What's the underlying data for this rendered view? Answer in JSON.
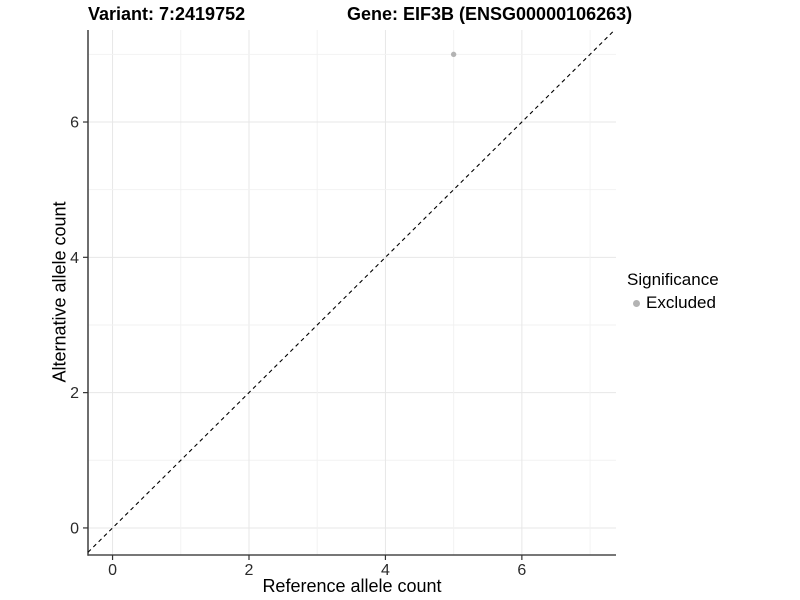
{
  "header": {
    "variant_label": "Variant: 7:2419752",
    "gene_label": "Gene: EIF3B (ENSG00000106263)"
  },
  "legend": {
    "title": "Significance",
    "items": [
      {
        "label": "Excluded",
        "color": "#b3b3b3"
      }
    ]
  },
  "chart_data": {
    "type": "scatter",
    "title": "Variant: 7:2419752 | Gene: EIF3B (ENSG00000106263)",
    "xlabel": "Reference allele count",
    "ylabel": "Alternative allele count",
    "xlim": [
      -0.36,
      7.38
    ],
    "ylim": [
      -0.4,
      7.36
    ],
    "x_ticks": [
      0,
      2,
      4,
      6
    ],
    "y_ticks": [
      0,
      2,
      4,
      6
    ],
    "grid_positions": [
      0,
      1,
      2,
      3,
      4,
      5,
      6,
      7
    ],
    "grid": true,
    "legend_position": "right",
    "legend_title": "Significance",
    "legend_entries": [
      "Excluded"
    ],
    "series": [
      {
        "name": "Excluded",
        "color": "#b3b3b3",
        "points": [
          {
            "x": 5,
            "y": 7
          }
        ]
      }
    ],
    "reference_line": {
      "label": "identity-line-y-equals-x",
      "x1": -0.36,
      "y1": -0.36,
      "x2": 7.36,
      "y2": 7.36,
      "style": "dashed",
      "color": "#000000"
    },
    "style": {
      "background": "#ffffff",
      "major_grid": "#e7e7e7",
      "minor_grid": "#f2f2f2",
      "axis_line": "#4a4a4a",
      "tick_color": "#333333",
      "tick_label_color": "#2b2b2b",
      "point_radius_px": 2.7
    }
  }
}
